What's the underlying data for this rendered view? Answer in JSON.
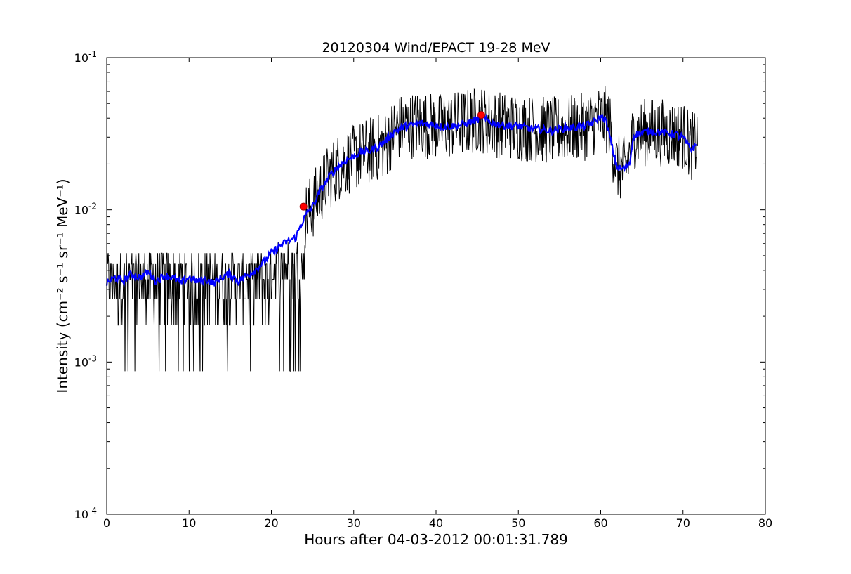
{
  "chart_data": {
    "type": "line",
    "title": "20120304 Wind/EPACT 19-28 MeV",
    "xlabel": "Hours after 04-03-2012 00:01:31.789",
    "ylabel": "Intensity (cm⁻² s⁻¹ sr⁻¹ MeV⁻¹)",
    "xlim": [
      0,
      80
    ],
    "ylim": [
      0.0001,
      0.1
    ],
    "yscale": "log",
    "grid": false,
    "x_ticks": [
      0,
      10,
      20,
      30,
      40,
      50,
      60,
      70,
      80
    ],
    "x_tick_labels": [
      "0",
      "10",
      "20",
      "30",
      "40",
      "50",
      "60",
      "70",
      "80"
    ],
    "y_ticks": [
      0.0001,
      0.001,
      0.01,
      0.1
    ],
    "y_tick_labels": [
      {
        "base": "10",
        "exp": "-4"
      },
      {
        "base": "10",
        "exp": "-3"
      },
      {
        "base": "10",
        "exp": "-2"
      },
      {
        "base": "10",
        "exp": "-1"
      }
    ],
    "series": [
      {
        "role": "raw",
        "color": "#000000",
        "x": [
          0,
          2,
          4,
          6,
          8,
          10,
          12,
          14,
          16,
          18,
          20,
          21,
          22,
          23,
          24,
          25,
          26,
          27,
          28,
          30,
          32,
          34,
          35,
          36,
          38,
          40,
          42,
          44,
          45.5,
          46,
          48,
          50,
          52,
          54,
          56,
          58,
          60,
          61,
          61.5,
          62,
          63,
          64,
          66,
          68,
          70,
          71,
          71.8
        ],
        "y": [
          0.0035,
          0.0036,
          0.0034,
          0.0035,
          0.0035,
          0.0034,
          0.0034,
          0.0035,
          0.0035,
          0.0036,
          0.0045,
          0.0058,
          0.006,
          0.0066,
          0.009,
          0.0105,
          0.0135,
          0.0165,
          0.019,
          0.022,
          0.0245,
          0.027,
          0.034,
          0.035,
          0.037,
          0.035,
          0.036,
          0.038,
          0.04,
          0.038,
          0.036,
          0.035,
          0.034,
          0.033,
          0.034,
          0.035,
          0.04,
          0.038,
          0.025,
          0.019,
          0.018,
          0.031,
          0.033,
          0.032,
          0.031,
          0.026,
          0.028
        ],
        "noise": 0.45
      },
      {
        "role": "smoothed",
        "color": "#0000ff",
        "x": [
          0,
          1,
          2,
          3,
          4,
          5,
          6,
          7,
          8,
          9,
          10,
          11,
          12,
          13,
          14,
          15,
          16,
          17,
          18,
          19,
          20,
          21,
          22,
          23,
          23.5,
          24,
          24.5,
          25,
          26,
          27,
          28,
          29,
          30,
          31,
          32,
          33,
          34,
          35,
          36,
          37,
          38,
          39,
          40,
          41,
          42,
          43,
          44,
          45,
          45.5,
          46,
          47,
          48,
          49,
          50,
          51,
          52,
          53,
          54,
          55,
          56,
          57,
          58,
          59,
          60,
          60.5,
          61,
          61.5,
          62,
          62.5,
          63,
          63.5,
          64,
          65,
          66,
          67,
          68,
          69,
          70,
          70.5,
          71,
          71.8
        ],
        "y": [
          0.0033,
          0.0036,
          0.0034,
          0.0038,
          0.0036,
          0.0039,
          0.0034,
          0.0037,
          0.0036,
          0.0033,
          0.0036,
          0.0034,
          0.0035,
          0.0033,
          0.0036,
          0.0038,
          0.0034,
          0.0037,
          0.004,
          0.0045,
          0.0052,
          0.0058,
          0.0062,
          0.0066,
          0.0078,
          0.0088,
          0.0098,
          0.0105,
          0.0135,
          0.0165,
          0.019,
          0.021,
          0.0225,
          0.024,
          0.0245,
          0.026,
          0.029,
          0.033,
          0.035,
          0.036,
          0.037,
          0.0365,
          0.036,
          0.035,
          0.0355,
          0.036,
          0.0375,
          0.039,
          0.041,
          0.039,
          0.037,
          0.036,
          0.0355,
          0.0355,
          0.0345,
          0.034,
          0.0335,
          0.033,
          0.034,
          0.0345,
          0.035,
          0.0355,
          0.037,
          0.041,
          0.04,
          0.032,
          0.024,
          0.019,
          0.0185,
          0.019,
          0.02,
          0.031,
          0.032,
          0.033,
          0.0325,
          0.032,
          0.0315,
          0.03,
          0.027,
          0.025,
          0.027
        ]
      }
    ],
    "markers": [
      {
        "x": 23.9,
        "y": 0.0105,
        "color": "#ff0000"
      },
      {
        "x": 45.5,
        "y": 0.042,
        "color": "#ff0000"
      }
    ]
  }
}
